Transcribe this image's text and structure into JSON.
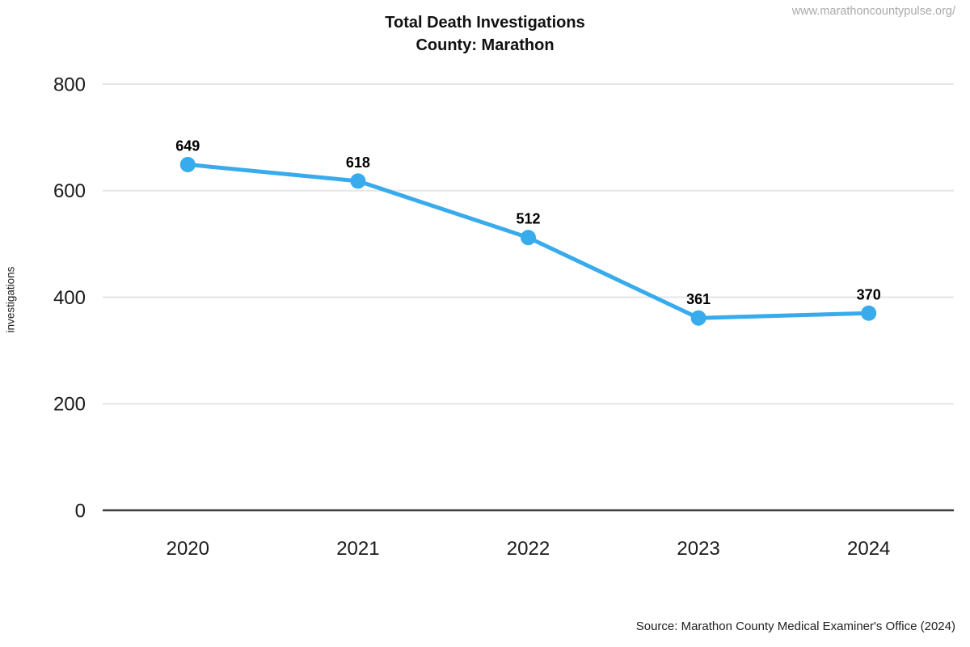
{
  "header": {
    "title_line1": "Total Death Investigations",
    "title_line2": "County: Marathon",
    "watermark": "www.marathoncountypulse.org/"
  },
  "footer": {
    "source": "Source: Marathon County Medical Examiner's Office (2024)"
  },
  "colors": {
    "line": "#38abec",
    "marker": "#38abec",
    "gridline": "#e6e6e6",
    "zero_axis": "#3b3b3b",
    "tick_text": "#1a1a1a",
    "watermark_text": "#aaaaaa"
  },
  "chart_data": {
    "type": "line",
    "title": "Total Death Investigations County: Marathon",
    "xlabel": "",
    "ylabel": "investigations",
    "categories": [
      "2020",
      "2021",
      "2022",
      "2023",
      "2024"
    ],
    "series": [
      {
        "name": "Total Death Investigations",
        "values": [
          649,
          618,
          512,
          361,
          370
        ]
      }
    ],
    "data_labels": [
      "649",
      "618",
      "512",
      "361",
      "370"
    ],
    "yticks": [
      0,
      200,
      400,
      600,
      800
    ],
    "ylim": [
      0,
      800
    ],
    "grid": true,
    "legend_position": "none"
  }
}
